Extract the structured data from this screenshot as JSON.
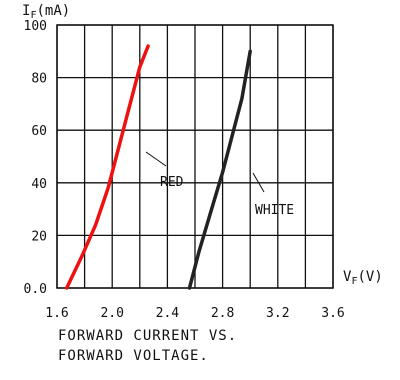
{
  "chart_data": {
    "type": "line",
    "y_axis_title": "I",
    "y_axis_title_sub": "F",
    "y_axis_title_unit": "(mA)",
    "x_axis_title": "V",
    "x_axis_title_sub": "F",
    "x_axis_title_unit": "(V)",
    "xlim": [
      1.6,
      3.6
    ],
    "ylim": [
      0,
      100
    ],
    "x_ticks": [
      1.6,
      2.0,
      2.4,
      2.8,
      3.2,
      3.6
    ],
    "x_tick_labels": [
      "1.6",
      "2.0",
      "2.4",
      "2.8",
      "3.2",
      "3.6"
    ],
    "y_ticks": [
      0,
      20,
      40,
      60,
      80,
      100
    ],
    "y_tick_labels": [
      "0.0",
      "20",
      "40",
      "60",
      "80",
      "100"
    ],
    "x_grid_values": [
      1.6,
      1.8,
      2.0,
      2.2,
      2.4,
      2.6,
      2.8,
      3.0,
      3.2,
      3.4,
      3.6
    ],
    "y_grid_values": [
      0,
      20,
      40,
      60,
      80,
      100
    ],
    "grid": true,
    "legend": "none",
    "series": [
      {
        "name": "RED",
        "color": "#ee1111",
        "points": [
          [
            1.67,
            0
          ],
          [
            1.78,
            12
          ],
          [
            1.88,
            24
          ],
          [
            1.97,
            38
          ],
          [
            2.05,
            54
          ],
          [
            2.13,
            70
          ],
          [
            2.2,
            84
          ],
          [
            2.26,
            92
          ]
        ]
      },
      {
        "name": "WHITE",
        "color": "#222222",
        "points": [
          [
            2.56,
            0
          ],
          [
            2.63,
            14
          ],
          [
            2.72,
            30
          ],
          [
            2.8,
            44
          ],
          [
            2.88,
            60
          ],
          [
            2.94,
            72
          ],
          [
            2.98,
            84
          ],
          [
            3.0,
            90
          ]
        ]
      }
    ],
    "caption_lines": [
      "FORWARD CURRENT VS.",
      "FORWARD VOLTAGE."
    ]
  }
}
